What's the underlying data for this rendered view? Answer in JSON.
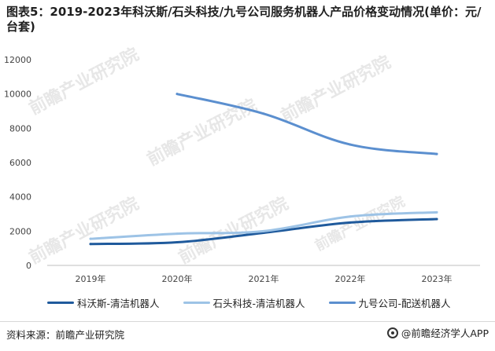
{
  "title": "图表5：2019-2023年科沃斯/石头科技/九号公司服务机器人产品价格变动情况(单价：元/台套)",
  "source": "资料来源：前瞻产业研究院",
  "brand": "@前瞻经济学人APP",
  "watermark": "前瞻产业研究院",
  "chart_data": {
    "type": "line",
    "categories": [
      "2019年",
      "2020年",
      "2021年",
      "2022年",
      "2023年"
    ],
    "ylim": [
      0,
      12000
    ],
    "yticks": [
      0,
      2000,
      4000,
      6000,
      8000,
      10000,
      12000
    ],
    "legend_position": "bottom",
    "grid": false,
    "series": [
      {
        "name": "科沃斯-清洁机器人",
        "color": "#1f5a9c",
        "values": [
          1250,
          1350,
          1900,
          2500,
          2700
        ]
      },
      {
        "name": "石头科技-清洁机器人",
        "color": "#9dc3e6",
        "values": [
          1550,
          1850,
          2000,
          2850,
          3100
        ]
      },
      {
        "name": "九号公司-配送机器人",
        "color": "#5b8fcf",
        "values": [
          null,
          10000,
          8850,
          7050,
          6500
        ]
      }
    ]
  }
}
